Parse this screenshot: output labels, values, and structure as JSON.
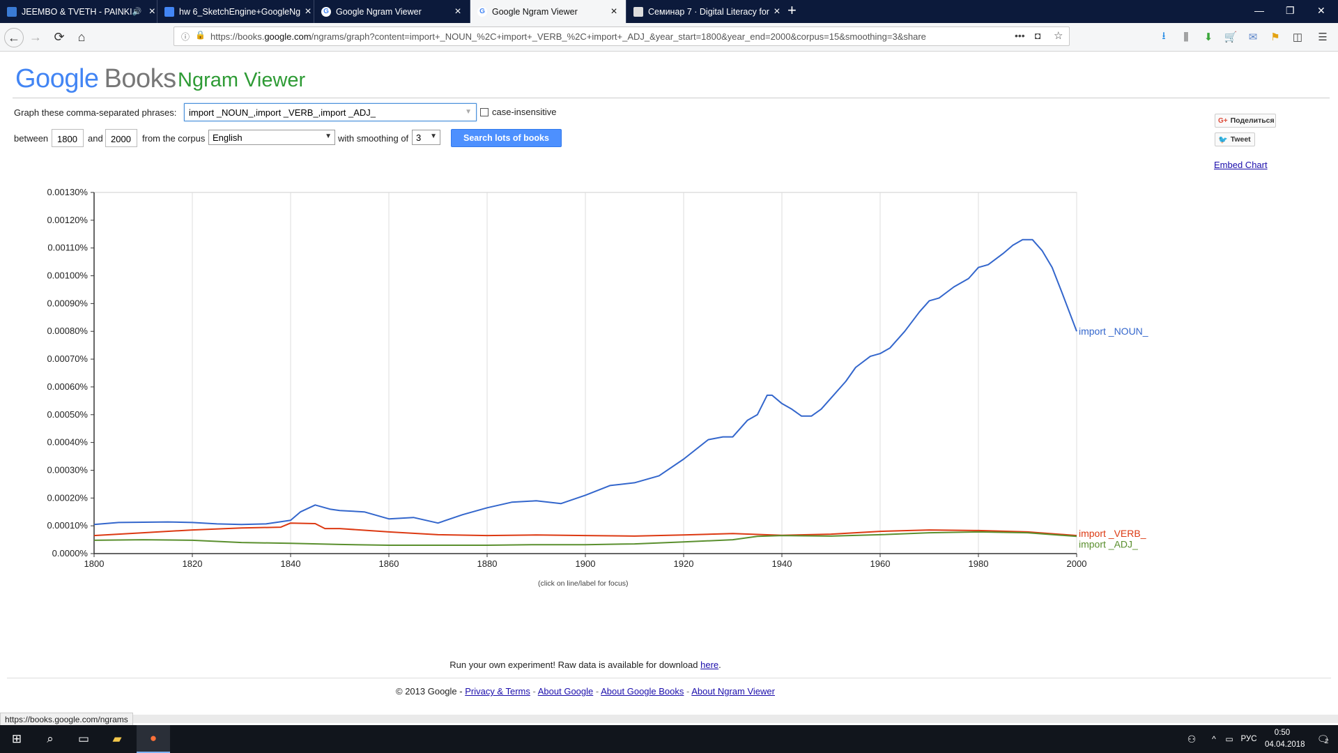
{
  "browser": {
    "tabs": [
      {
        "title": "JEEMBO & TVETH - PAINKI",
        "icon": "media-play-icon",
        "active": false
      },
      {
        "title": "hw 6_SketchEngine+GoogleNg",
        "icon": "doc-icon",
        "active": false
      },
      {
        "title": "Google Ngram Viewer",
        "icon": "google-icon",
        "active": false
      },
      {
        "title": "Google Ngram Viewer",
        "icon": "google-icon",
        "active": true
      },
      {
        "title": "Семинар 7 · Digital Literacy for",
        "icon": "book-icon",
        "active": false
      }
    ],
    "url_prefix": "https://books.",
    "url_domain": "google.com",
    "url_rest": "/ngrams/graph?content=import+_NOUN_%2C+import+_VERB_%2C+import+_ADJ_&year_start=1800&year_end=2000&corpus=15&smoothing=3&share",
    "status_url": "https://books.google.com/ngrams"
  },
  "header": {
    "logo_google": "Google",
    "logo_books": "Books",
    "subtitle": "Ngram Viewer"
  },
  "form": {
    "graph_label": "Graph these comma-separated phrases:",
    "phrase_value": "import _NOUN_,import _VERB_,import _ADJ_",
    "case_insensitive_label": "case-insensitive",
    "between_label": "between",
    "year_start": "1800",
    "and_label": "and",
    "year_end": "2000",
    "corpus_label": "from the corpus",
    "corpus_value": "English",
    "smoothing_label": "with smoothing of",
    "smoothing_value": "3",
    "search_button": "Search lots of books"
  },
  "share": {
    "google_plus": "Поделиться",
    "tweet": "Tweet",
    "embed": "Embed Chart"
  },
  "chart_data": {
    "type": "line",
    "title": "",
    "xlabel": "",
    "ylabel": "",
    "xlim": [
      1800,
      2000
    ],
    "ylim": [
      0,
      0.0013
    ],
    "x_ticks": [
      "1800",
      "1820",
      "1840",
      "1860",
      "1880",
      "1900",
      "1920",
      "1940",
      "1960",
      "1980",
      "2000"
    ],
    "y_ticks": [
      "0.0000%",
      "0.00010%",
      "0.00020%",
      "0.00030%",
      "0.00040%",
      "0.00050%",
      "0.00060%",
      "0.00070%",
      "0.00080%",
      "0.00090%",
      "0.00100%",
      "0.00110%",
      "0.00120%",
      "0.00130%"
    ],
    "grid": true,
    "legend": "end-of-line labels",
    "hint": "(click on line/label for focus)",
    "series": [
      {
        "name": "import _NOUN_",
        "color": "#3366cc",
        "x": [
          1800,
          1805,
          1810,
          1815,
          1820,
          1825,
          1830,
          1835,
          1840,
          1842,
          1845,
          1848,
          1850,
          1855,
          1860,
          1865,
          1870,
          1875,
          1880,
          1885,
          1890,
          1895,
          1900,
          1905,
          1910,
          1915,
          1920,
          1925,
          1928,
          1930,
          1933,
          1935,
          1937,
          1938,
          1940,
          1942,
          1944,
          1946,
          1948,
          1950,
          1953,
          1955,
          1958,
          1960,
          1962,
          1965,
          1968,
          1970,
          1972,
          1975,
          1978,
          1980,
          1982,
          1985,
          1987,
          1989,
          1991,
          1993,
          1995,
          1997,
          2000
        ],
        "y": [
          0.000105,
          0.000112,
          0.000113,
          0.000114,
          0.000112,
          0.000107,
          0.000105,
          0.000107,
          0.00012,
          0.00015,
          0.000175,
          0.00016,
          0.000155,
          0.00015,
          0.000125,
          0.00013,
          0.00011,
          0.00014,
          0.000165,
          0.000185,
          0.00019,
          0.00018,
          0.00021,
          0.000245,
          0.000255,
          0.00028,
          0.00034,
          0.00041,
          0.00042,
          0.00042,
          0.00048,
          0.0005,
          0.00057,
          0.00057,
          0.00054,
          0.00052,
          0.000495,
          0.000495,
          0.00052,
          0.00056,
          0.00062,
          0.00067,
          0.00071,
          0.00072,
          0.00074,
          0.0008,
          0.00087,
          0.00091,
          0.00092,
          0.00096,
          0.00099,
          0.00103,
          0.00104,
          0.00108,
          0.00111,
          0.00113,
          0.00113,
          0.00109,
          0.00103,
          0.00094,
          0.0008
        ]
      },
      {
        "name": "import _VERB_",
        "color": "#dc3912",
        "x": [
          1800,
          1810,
          1820,
          1830,
          1838,
          1840,
          1845,
          1847,
          1850,
          1860,
          1870,
          1880,
          1890,
          1900,
          1910,
          1920,
          1930,
          1940,
          1950,
          1960,
          1970,
          1980,
          1990,
          2000
        ],
        "y": [
          6.5e-05,
          7.5e-05,
          8.5e-05,
          9.2e-05,
          9.5e-05,
          0.00011,
          0.000108,
          9e-05,
          9e-05,
          7.8e-05,
          6.8e-05,
          6.5e-05,
          6.7e-05,
          6.5e-05,
          6.3e-05,
          6.7e-05,
          7.2e-05,
          6.6e-05,
          7e-05,
          8e-05,
          8.5e-05,
          8.3e-05,
          7.8e-05,
          6.5e-05
        ]
      },
      {
        "name": "import _ADJ_",
        "color": "#5a8f2e",
        "x": [
          1800,
          1810,
          1820,
          1830,
          1840,
          1850,
          1860,
          1870,
          1880,
          1890,
          1900,
          1910,
          1920,
          1930,
          1935,
          1940,
          1950,
          1960,
          1970,
          1980,
          1990,
          2000
        ],
        "y": [
          4.8e-05,
          5e-05,
          4.8e-05,
          4e-05,
          3.7e-05,
          3.3e-05,
          3e-05,
          3e-05,
          3e-05,
          3.2e-05,
          3.2e-05,
          3.5e-05,
          4.2e-05,
          5e-05,
          6.2e-05,
          6.5e-05,
          6.3e-05,
          6.8e-05,
          7.5e-05,
          7.8e-05,
          7.5e-05,
          6.2e-05
        ]
      }
    ]
  },
  "footer": {
    "experiment_text": "Run your own experiment! Raw data is available for download ",
    "experiment_link": "here",
    "copyright": "© 2013 Google - ",
    "links": [
      "Privacy & Terms",
      "About Google",
      "About Google Books",
      "About Ngram Viewer"
    ]
  },
  "taskbar": {
    "lang": "РУС",
    "time": "0:50",
    "date": "04.04.2018",
    "notif_count": "2"
  }
}
